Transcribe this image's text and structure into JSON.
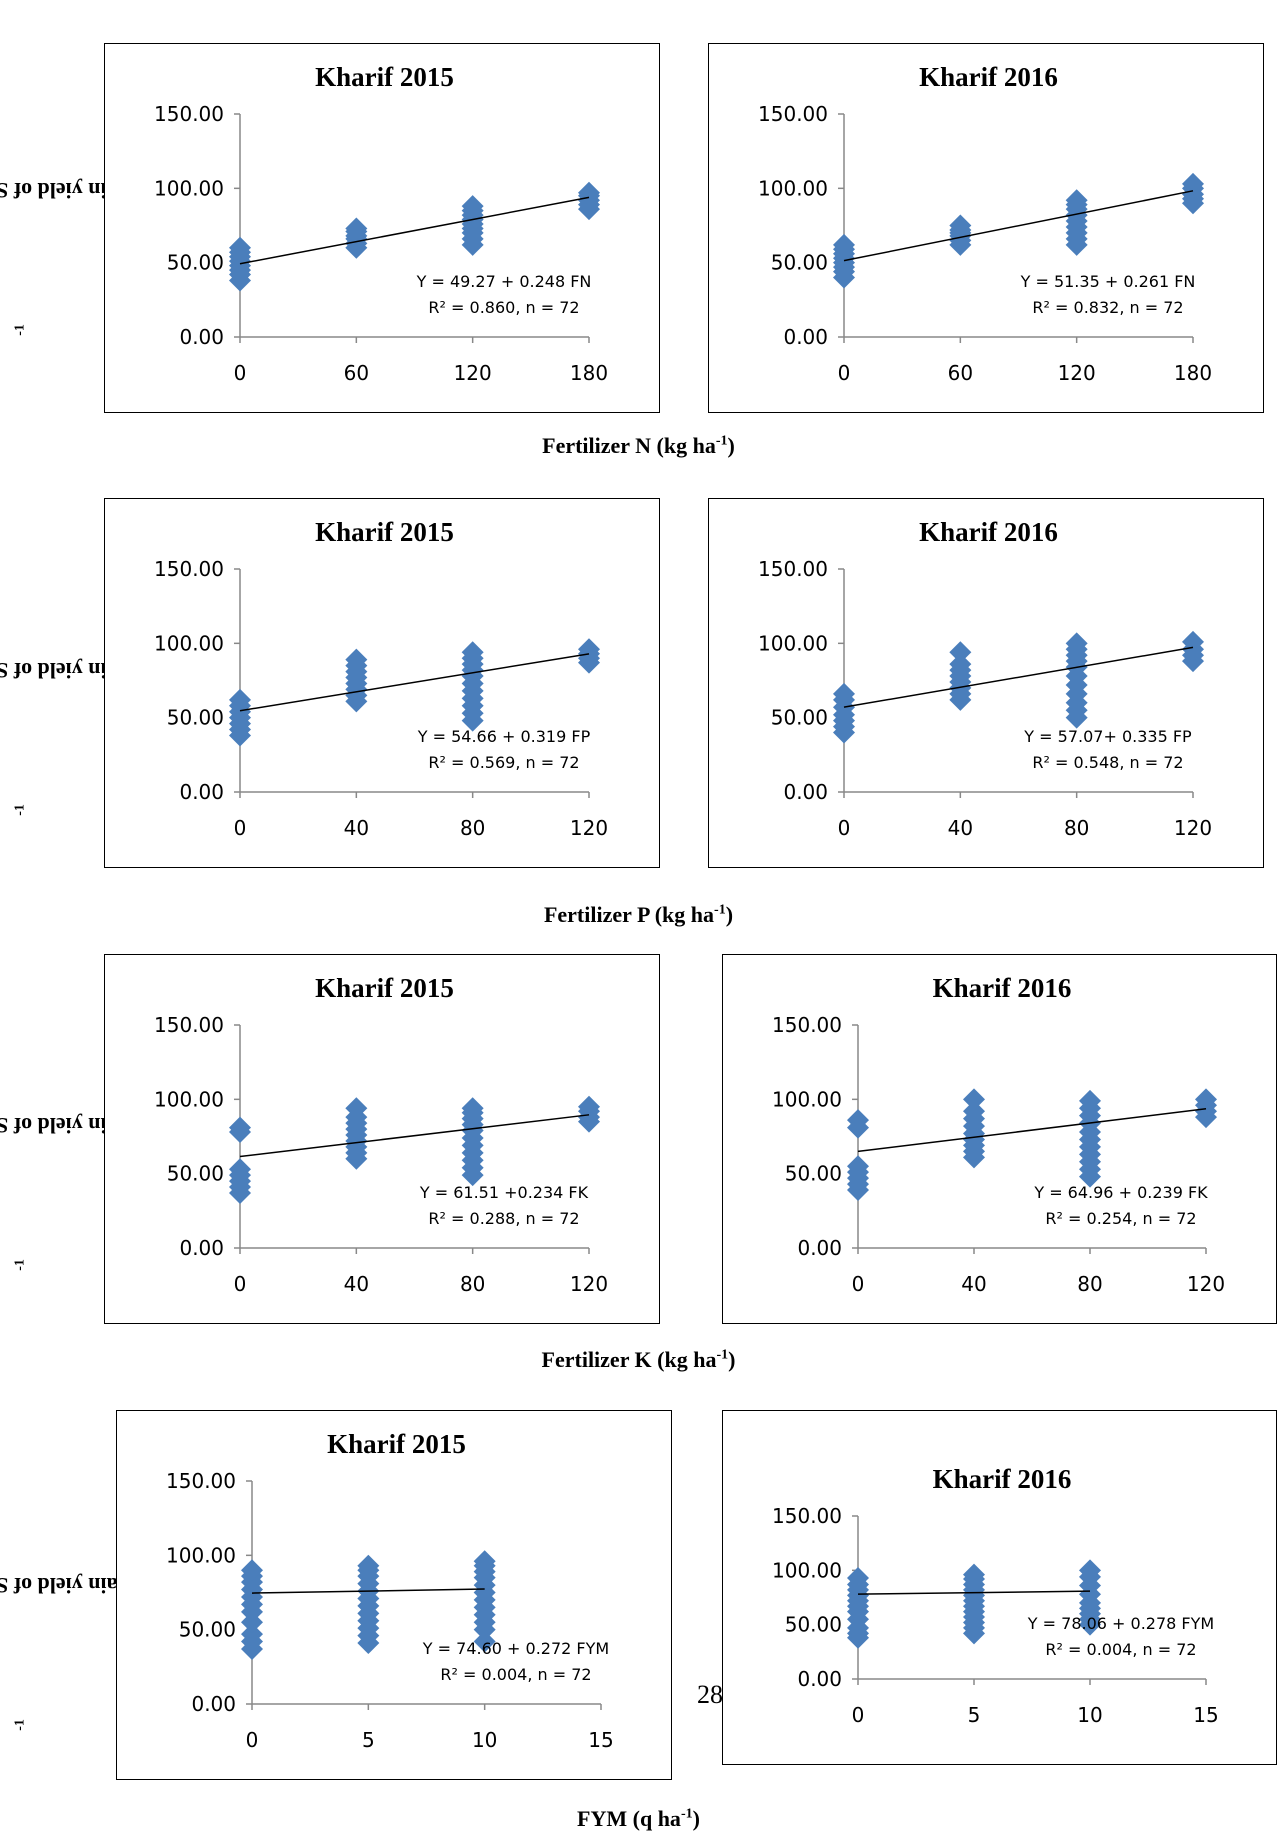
{
  "y_label": "Grain yield of SRI rice in (q ha",
  "y_label_sup": "-1",
  "y_label_close": ")",
  "x_labels": [
    {
      "main": "Fertilizer N (kg ha",
      "sup": "-1",
      "close": ")"
    },
    {
      "main": "Fertilizer P (kg ha",
      "sup": "-1",
      "close": ")"
    },
    {
      "main": "Fertilizer K (kg ha",
      "sup": "-1",
      "close": ")"
    },
    {
      "main": "FYM (q ha",
      "sup": "-1",
      "close": ")"
    }
  ],
  "page_number": "28",
  "colors": {
    "marker": "#4a7ebb",
    "line": "#000000",
    "axis": "#888888"
  },
  "chart_data": [
    {
      "type": "scatter",
      "title": "Kharif  2015",
      "x_ticks": [
        "0",
        "60",
        "120",
        "180"
      ],
      "y_ticks": [
        "0.00",
        "50.00",
        "100.00",
        "150.00"
      ],
      "xlim": [
        0,
        180
      ],
      "ylim": [
        0,
        150
      ],
      "series": [
        {
          "x": [
            0,
            0,
            0,
            0,
            0,
            0,
            0,
            0,
            60,
            60,
            60,
            60,
            60,
            60,
            120,
            120,
            120,
            120,
            120,
            120,
            120,
            120,
            120,
            180,
            180,
            180,
            180,
            180
          ],
          "y": [
            38,
            42,
            45,
            48,
            51,
            54,
            57,
            60,
            60,
            63,
            66,
            68,
            71,
            73,
            62,
            66,
            70,
            73,
            76,
            79,
            82,
            85,
            88,
            86,
            89,
            92,
            95,
            97
          ]
        }
      ],
      "trendline": {
        "intercept": 49.27,
        "slope": 0.248
      },
      "equation": "Y = 49.27 +  0.248 FN",
      "r2": "R² = 0.860, n = 72"
    },
    {
      "type": "scatter",
      "title": "Kharif  2016",
      "x_ticks": [
        "0",
        "60",
        "120",
        "180"
      ],
      "y_ticks": [
        "0.00",
        "50.00",
        "100.00",
        "150.00"
      ],
      "xlim": [
        0,
        180
      ],
      "ylim": [
        0,
        150
      ],
      "series": [
        {
          "x": [
            0,
            0,
            0,
            0,
            0,
            0,
            0,
            0,
            60,
            60,
            60,
            60,
            60,
            60,
            120,
            120,
            120,
            120,
            120,
            120,
            120,
            120,
            120,
            180,
            180,
            180,
            180,
            180
          ],
          "y": [
            40,
            44,
            47,
            50,
            53,
            56,
            59,
            62,
            62,
            65,
            68,
            70,
            72,
            75,
            62,
            66,
            70,
            74,
            78,
            82,
            86,
            89,
            92,
            90,
            93,
            96,
            100,
            103
          ]
        }
      ],
      "trendline": {
        "intercept": 51.35,
        "slope": 0.261
      },
      "equation": "Y = 51.35 + 0.261 FN",
      "r2": "R² = 0.832, n = 72"
    },
    {
      "type": "scatter",
      "title": "Kharif  2015",
      "x_ticks": [
        "0",
        "40",
        "80",
        "120"
      ],
      "y_ticks": [
        "0.00",
        "50.00",
        "100.00",
        "150.00"
      ],
      "xlim": [
        0,
        120
      ],
      "ylim": [
        0,
        150
      ],
      "series": [
        {
          "x": [
            0,
            0,
            0,
            0,
            0,
            0,
            0,
            40,
            40,
            40,
            40,
            40,
            40,
            40,
            40,
            80,
            80,
            80,
            80,
            80,
            80,
            80,
            80,
            80,
            80,
            80,
            120,
            120,
            120,
            120
          ],
          "y": [
            38,
            42,
            46,
            50,
            54,
            58,
            62,
            61,
            65,
            69,
            73,
            77,
            81,
            85,
            89,
            48,
            53,
            58,
            63,
            68,
            73,
            78,
            82,
            86,
            90,
            94,
            87,
            90,
            93,
            96
          ]
        }
      ],
      "trendline": {
        "intercept": 54.66,
        "slope": 0.319
      },
      "equation": "Y = 54.66 + 0.319 FP",
      "r2": "R² = 0.569, n = 72"
    },
    {
      "type": "scatter",
      "title": "Kharif  2016",
      "x_ticks": [
        "0",
        "40",
        "80",
        "120"
      ],
      "y_ticks": [
        "0.00",
        "50.00",
        "100.00",
        "150.00"
      ],
      "xlim": [
        0,
        120
      ],
      "ylim": [
        0,
        150
      ],
      "series": [
        {
          "x": [
            0,
            0,
            0,
            0,
            0,
            0,
            0,
            40,
            40,
            40,
            40,
            40,
            40,
            40,
            40,
            80,
            80,
            80,
            80,
            80,
            80,
            80,
            80,
            80,
            80,
            80,
            120,
            120,
            120,
            120
          ],
          "y": [
            40,
            44,
            48,
            52,
            57,
            62,
            66,
            62,
            66,
            70,
            74,
            78,
            82,
            86,
            94,
            50,
            55,
            60,
            66,
            72,
            78,
            84,
            88,
            92,
            96,
            100,
            88,
            92,
            96,
            101
          ]
        }
      ],
      "trendline": {
        "intercept": 57.07,
        "slope": 0.335
      },
      "equation": "Y = 57.07+ 0.335 FP",
      "r2": "R² = 0.548, n = 72"
    },
    {
      "type": "scatter",
      "title": "Kharif  2015",
      "x_ticks": [
        "0",
        "40",
        "80",
        "120"
      ],
      "y_ticks": [
        "0.00",
        "50.00",
        "100.00",
        "150.00"
      ],
      "xlim": [
        0,
        120
      ],
      "ylim": [
        0,
        150
      ],
      "series": [
        {
          "x": [
            0,
            0,
            0,
            0,
            0,
            0,
            0,
            40,
            40,
            40,
            40,
            40,
            40,
            40,
            40,
            40,
            80,
            80,
            80,
            80,
            80,
            80,
            80,
            80,
            80,
            80,
            80,
            120,
            120,
            120,
            120
          ],
          "y": [
            37,
            41,
            45,
            49,
            53,
            78,
            81,
            60,
            64,
            68,
            72,
            76,
            80,
            84,
            88,
            94,
            49,
            54,
            59,
            64,
            69,
            74,
            79,
            83,
            87,
            91,
            94,
            85,
            88,
            92,
            95
          ]
        }
      ],
      "trendline": {
        "intercept": 61.51,
        "slope": 0.234
      },
      "equation": "Y = 61.51 +0.234 FK",
      "r2": "R² = 0.288, n = 72"
    },
    {
      "type": "scatter",
      "title": "Kharif  2016",
      "x_ticks": [
        "0",
        "40",
        "80",
        "120"
      ],
      "y_ticks": [
        "0.00",
        "50.00",
        "100.00",
        "150.00"
      ],
      "xlim": [
        0,
        120
      ],
      "ylim": [
        0,
        150
      ],
      "series": [
        {
          "x": [
            0,
            0,
            0,
            0,
            0,
            0,
            0,
            40,
            40,
            40,
            40,
            40,
            40,
            40,
            40,
            40,
            80,
            80,
            80,
            80,
            80,
            80,
            80,
            80,
            80,
            80,
            80,
            120,
            120,
            120,
            120
          ],
          "y": [
            39,
            43,
            47,
            51,
            55,
            81,
            86,
            61,
            65,
            69,
            73,
            77,
            82,
            87,
            92,
            100,
            48,
            53,
            58,
            63,
            68,
            73,
            78,
            84,
            89,
            94,
            99,
            88,
            92,
            96,
            100
          ]
        }
      ],
      "trendline": {
        "intercept": 64.96,
        "slope": 0.239
      },
      "equation": "Y =  64.96 + 0.239 FK",
      "r2": "R² = 0.254, n = 72"
    },
    {
      "type": "scatter",
      "title": "Kharif  2015",
      "x_ticks": [
        "0",
        "5",
        "10",
        "15"
      ],
      "y_ticks": [
        "0.00",
        "50.00",
        "100.00",
        "150.00"
      ],
      "xlim": [
        0,
        15
      ],
      "ylim": [
        0,
        150
      ],
      "series": [
        {
          "x": [
            0,
            0,
            0,
            0,
            0,
            0,
            0,
            0,
            0,
            0,
            0,
            5,
            5,
            5,
            5,
            5,
            5,
            5,
            5,
            5,
            5,
            5,
            5,
            10,
            10,
            10,
            10,
            10,
            10,
            10,
            10,
            10,
            10,
            10,
            10
          ],
          "y": [
            37,
            42,
            47,
            55,
            62,
            67,
            72,
            77,
            82,
            86,
            90,
            41,
            46,
            51,
            56,
            61,
            66,
            71,
            76,
            81,
            86,
            90,
            93,
            42,
            50,
            55,
            60,
            65,
            70,
            75,
            80,
            85,
            89,
            93,
            96
          ]
        }
      ],
      "trendline": {
        "intercept": 74.6,
        "slope": 0.272
      },
      "equation": "Y =  74.60  + 0.272 FYM",
      "r2": "R² = 0.004, n = 72"
    },
    {
      "type": "scatter",
      "title": "Kharif  2016",
      "x_ticks": [
        "0",
        "5",
        "10",
        "15"
      ],
      "y_ticks": [
        "0.00",
        "50.00",
        "100.00",
        "150.00"
      ],
      "xlim": [
        0,
        15
      ],
      "ylim": [
        0,
        150
      ],
      "series": [
        {
          "x": [
            0,
            0,
            0,
            0,
            0,
            0,
            0,
            0,
            0,
            0,
            0,
            5,
            5,
            5,
            5,
            5,
            5,
            5,
            5,
            5,
            5,
            5,
            5,
            10,
            10,
            10,
            10,
            10,
            10,
            10,
            10,
            10
          ],
          "y": [
            38,
            42,
            47,
            55,
            62,
            67,
            72,
            77,
            82,
            87,
            93,
            42,
            47,
            52,
            57,
            62,
            67,
            72,
            77,
            82,
            87,
            92,
            96,
            50,
            55,
            60,
            65,
            70,
            78,
            86,
            94,
            100
          ]
        }
      ],
      "trendline": {
        "intercept": 78.06,
        "slope": 0.278
      },
      "equation": "Y = 78.06 + 0.278 FYM",
      "r2": "R² = 0.004, n = 72"
    }
  ]
}
